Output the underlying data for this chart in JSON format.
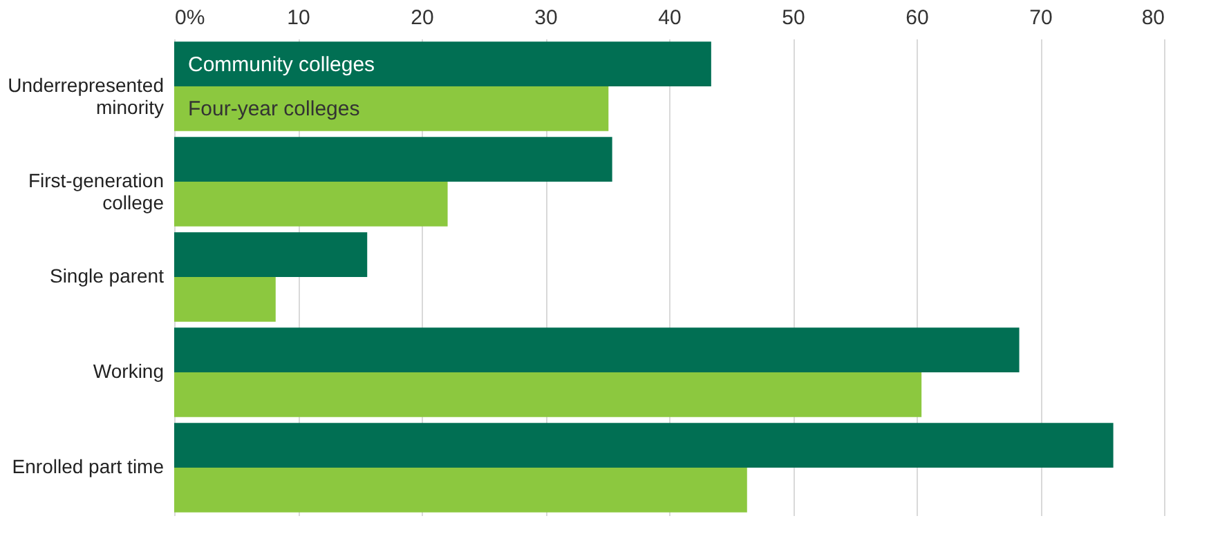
{
  "chart_data": {
    "type": "bar",
    "orientation": "horizontal",
    "categories": [
      "Underrepresented minority",
      "First-generation college",
      "Single parent",
      "Working",
      "Enrolled part time"
    ],
    "series": [
      {
        "name": "Community colleges",
        "color": "#016f53",
        "values": [
          43.4,
          35.4,
          15.6,
          68.3,
          75.9
        ]
      },
      {
        "name": "Four-year colleges",
        "color": "#8cc83f",
        "values": [
          35.1,
          22.1,
          8.2,
          60.4,
          46.3
        ]
      }
    ],
    "xlim": [
      0,
      80
    ],
    "xticks": [
      {
        "value": 0,
        "label": "0%"
      },
      10,
      20,
      30,
      40,
      50,
      60,
      70,
      80
    ],
    "grid": "x",
    "legend": false
  }
}
